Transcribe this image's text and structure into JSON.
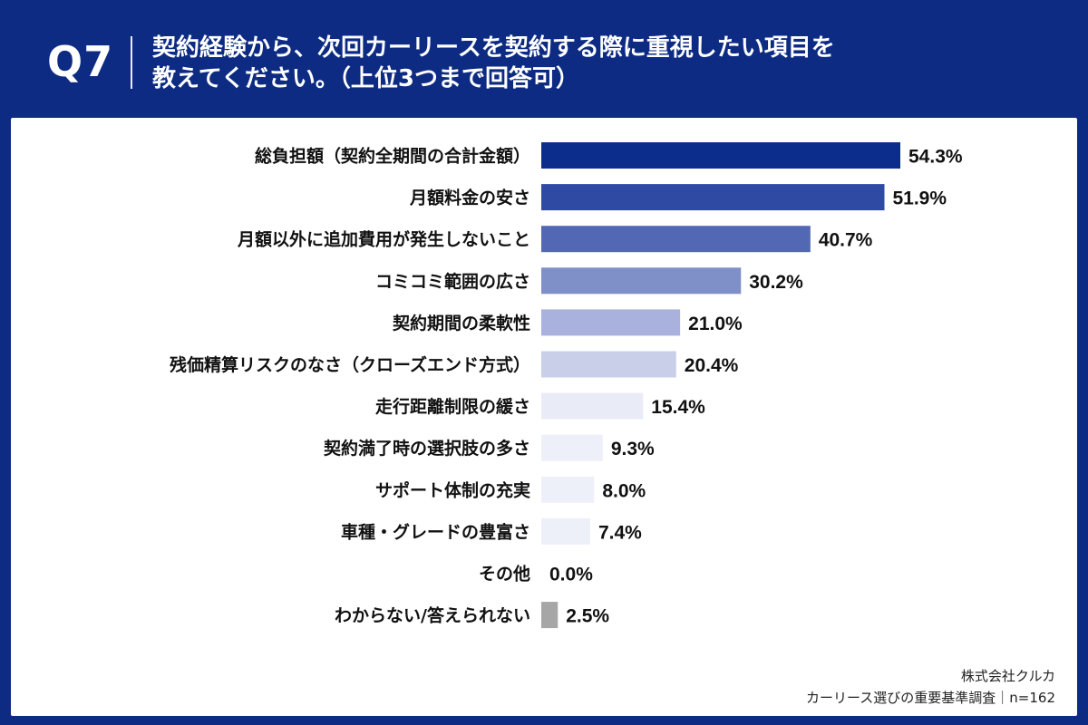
{
  "header": {
    "qnum": "Q7",
    "question_line1": "契約経験から、次回カーリースを契約する際に重視したい項目を",
    "question_line2": "教えてください。（上位3つまで回答可）"
  },
  "chart_data": {
    "type": "bar",
    "orientation": "horizontal",
    "categories": [
      "総負担額（契約全期間の合計金額）",
      "月額料金の安さ",
      "月額以外に追加費用が発生しないこと",
      "コミコミ範囲の広さ",
      "契約期間の柔軟性",
      "残価精算リスクのなさ（クローズエンド方式）",
      "走行距離制限の緩さ",
      "契約満了時の選択肢の多さ",
      "サポート体制の充実",
      "車種・グレードの豊富さ",
      "その他",
      "わからない/答えられない"
    ],
    "values": [
      54.3,
      51.9,
      40.7,
      30.2,
      21.0,
      20.4,
      15.4,
      9.3,
      8.0,
      7.4,
      0.0,
      2.5
    ],
    "value_labels": [
      "54.3%",
      "51.9%",
      "40.7%",
      "30.2%",
      "21.0%",
      "20.4%",
      "15.4%",
      "9.3%",
      "8.0%",
      "7.4%",
      "0.0%",
      "2.5%"
    ],
    "colors": [
      "#0c2d8c",
      "#2f4aa3",
      "#5368b5",
      "#7f8fc8",
      "#a9b2dc",
      "#c9cfe9",
      "#e9ecf7",
      "#eef0f9",
      "#eef0f9",
      "#eef0f9",
      "#eef0f9",
      "#a6a6a6"
    ],
    "xlim": [
      0,
      60
    ]
  },
  "footer": {
    "company": "株式会社クルカ",
    "survey": "カーリース選びの重要基準調査｜n=162"
  }
}
